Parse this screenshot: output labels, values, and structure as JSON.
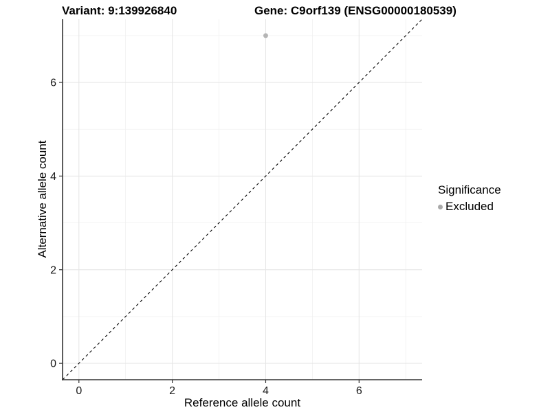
{
  "chart_data": {
    "type": "scatter",
    "titles": {
      "variant": "Variant: 9:139926840",
      "gene": "Gene: C9orf139 (ENSG00000180539)"
    },
    "xlabel": "Reference allele count",
    "ylabel": "Alternative allele count",
    "xlim": [
      -0.35,
      7.35
    ],
    "ylim": [
      -0.35,
      7.35
    ],
    "x_major_ticks": [
      0,
      2,
      4,
      6
    ],
    "y_major_ticks": [
      0,
      2,
      4,
      6
    ],
    "x_minor_ticks": [
      1,
      3,
      5,
      7
    ],
    "y_minor_ticks": [
      1,
      3,
      5,
      7
    ],
    "grid": "major and minor, light gray on white",
    "reference_line": {
      "equation": "y = x",
      "style": "dashed",
      "color": "#000000"
    },
    "series": [
      {
        "name": "Excluded",
        "color": "#b5b5b5",
        "points": [
          {
            "x": 4,
            "y": 7
          }
        ]
      }
    ],
    "legend": {
      "title": "Significance",
      "position": "right",
      "entries": [
        {
          "label": "Excluded",
          "color": "#a9a9a9"
        }
      ]
    }
  },
  "colors": {
    "background": "#ffffff",
    "grid_major": "#e6e6e6",
    "grid_minor": "#f0f0f0",
    "axis_line": "#333333",
    "tick_mark": "#333333",
    "tick_label": "#1a1a1a",
    "point": "#b5b5b5",
    "dashed_line": "#000000"
  }
}
